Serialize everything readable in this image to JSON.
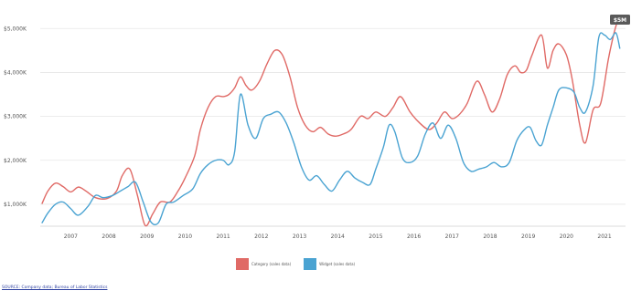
{
  "chart_data": {
    "type": "line",
    "title": "",
    "xlabel": "",
    "ylabel": "",
    "x_tick_labels": [
      "2007",
      "2008",
      "2009",
      "2010",
      "2011",
      "2012",
      "2013",
      "2014",
      "2015",
      "2016",
      "2017",
      "2018",
      "2019",
      "2020",
      "2021"
    ],
    "y_tick_labels": [
      "$1,000K",
      "$2,000K",
      "$3,000K",
      "$4,000K",
      "$5,000K"
    ],
    "ylim": [
      500,
      5400
    ],
    "xlim": [
      2006.4,
      2021.75
    ],
    "grid": true,
    "legend_position": "bottom",
    "colors": {
      "red_series": "#e06a66",
      "blue_series": "#4aa3d2",
      "end_badge": "#5a5a5a"
    },
    "end_badge_text": "$5M",
    "series": [
      {
        "name": "Category (sales data)",
        "color": "#e06a66",
        "x": [
          2006.45,
          2006.6,
          2006.8,
          2007.0,
          2007.2,
          2007.4,
          2007.6,
          2007.85,
          2008.15,
          2008.4,
          2008.55,
          2008.75,
          2008.95,
          2009.15,
          2009.35,
          2009.55,
          2009.8,
          2010.0,
          2010.2,
          2010.45,
          2010.6,
          2010.8,
          2011.0,
          2011.2,
          2011.35,
          2011.5,
          2011.65,
          2011.8,
          2011.95,
          2012.15,
          2012.35,
          2012.55,
          2012.75,
          2012.95,
          2013.15,
          2013.35,
          2013.55,
          2013.75,
          2013.95,
          2014.15,
          2014.35,
          2014.55,
          2014.8,
          2015.0,
          2015.2,
          2015.45,
          2015.65,
          2015.85,
          2016.1,
          2016.35,
          2016.6,
          2016.8,
          2017.0,
          2017.2,
          2017.4,
          2017.6,
          2017.85,
          2018.05,
          2018.25,
          2018.45,
          2018.65,
          2018.85,
          2019.0,
          2019.15,
          2019.3,
          2019.55,
          2019.7,
          2019.85,
          2020.0,
          2020.2,
          2020.35,
          2020.55,
          2020.7,
          2020.9,
          2021.1,
          2021.3,
          2021.45,
          2021.55
        ],
        "values": [
          1020,
          1300,
          1480,
          1400,
          1280,
          1390,
          1300,
          1150,
          1130,
          1300,
          1650,
          1800,
          1200,
          520,
          780,
          1050,
          1050,
          1280,
          1600,
          2100,
          2700,
          3200,
          3450,
          3450,
          3500,
          3650,
          3900,
          3700,
          3600,
          3800,
          4200,
          4500,
          4400,
          3900,
          3200,
          2800,
          2650,
          2750,
          2600,
          2550,
          2600,
          2700,
          3000,
          2950,
          3100,
          3000,
          3200,
          3450,
          3100,
          2850,
          2700,
          2850,
          3100,
          2950,
          3050,
          3300,
          3800,
          3500,
          3100,
          3400,
          3950,
          4150,
          4000,
          4050,
          4400,
          4850,
          4100,
          4500,
          4650,
          4400,
          3850,
          2800,
          2400,
          3150,
          3300,
          4300,
          4900,
          5200
        ]
      },
      {
        "name": "Widget (sales data)",
        "color": "#4aa3d2",
        "x": [
          2006.45,
          2006.6,
          2006.8,
          2007.0,
          2007.2,
          2007.4,
          2007.65,
          2007.85,
          2008.05,
          2008.3,
          2008.5,
          2008.7,
          2008.9,
          2009.1,
          2009.3,
          2009.5,
          2009.7,
          2009.9,
          2010.15,
          2010.4,
          2010.6,
          2010.8,
          2011.0,
          2011.2,
          2011.35,
          2011.5,
          2011.65,
          2011.85,
          2012.05,
          2012.25,
          2012.45,
          2012.65,
          2012.85,
          2013.05,
          2013.25,
          2013.45,
          2013.65,
          2013.85,
          2014.05,
          2014.25,
          2014.45,
          2014.65,
          2014.85,
          2015.05,
          2015.2,
          2015.4,
          2015.55,
          2015.7,
          2015.9,
          2016.1,
          2016.3,
          2016.5,
          2016.7,
          2016.9,
          2017.1,
          2017.3,
          2017.5,
          2017.7,
          2017.9,
          2018.1,
          2018.3,
          2018.5,
          2018.7,
          2018.9,
          2019.1,
          2019.25,
          2019.4,
          2019.55,
          2019.7,
          2019.85,
          2020.0,
          2020.2,
          2020.4,
          2020.55,
          2020.7,
          2020.9,
          2021.05,
          2021.2,
          2021.35,
          2021.5,
          2021.6
        ],
        "values": [
          580,
          800,
          1000,
          1050,
          900,
          750,
          950,
          1200,
          1150,
          1200,
          1300,
          1400,
          1500,
          1050,
          600,
          580,
          1000,
          1050,
          1200,
          1350,
          1700,
          1900,
          2000,
          2000,
          1900,
          2200,
          3500,
          2800,
          2500,
          2950,
          3050,
          3100,
          2850,
          2400,
          1850,
          1550,
          1650,
          1450,
          1300,
          1550,
          1750,
          1600,
          1500,
          1450,
          1800,
          2300,
          2800,
          2650,
          2050,
          1950,
          2100,
          2600,
          2850,
          2500,
          2800,
          2500,
          1950,
          1750,
          1800,
          1850,
          1950,
          1850,
          1950,
          2450,
          2700,
          2750,
          2450,
          2350,
          2800,
          3200,
          3600,
          3650,
          3550,
          3200,
          3100,
          3700,
          4800,
          4850,
          4750,
          4900,
          4550
        ]
      }
    ],
    "source_note": "SOURCE: Company data; Bureau of Labor Statistics"
  }
}
